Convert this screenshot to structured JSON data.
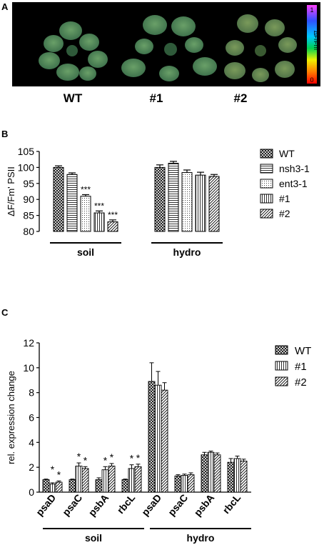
{
  "panel_a": {
    "letter": "A",
    "scale_label": "ΔF/Fm'",
    "scale_max": "1",
    "scale_min": "0",
    "genotypes": [
      "WT",
      "#1",
      "#2"
    ]
  },
  "chart_data": [
    {
      "panel": "B",
      "type": "bar",
      "ylabel": "ΔF/Fm' PSII",
      "ylim": [
        80,
        105
      ],
      "yticks": [
        "80",
        "85",
        "90",
        "95",
        "100",
        "105"
      ],
      "groups": [
        {
          "label": "soil",
          "values": [
            100.0,
            97.8,
            91.0,
            85.8,
            83.0
          ],
          "errors": [
            0.5,
            0.5,
            0.5,
            0.6,
            0.6
          ],
          "significance": [
            "",
            "",
            "***",
            "***",
            "***"
          ]
        },
        {
          "label": "hydro",
          "values": [
            100.0,
            101.3,
            98.4,
            97.6,
            97.2
          ],
          "errors": [
            0.8,
            0.6,
            0.8,
            0.9,
            0.6
          ],
          "significance": [
            "",
            "",
            "",
            "",
            ""
          ]
        }
      ],
      "series": [
        {
          "name": "WT",
          "pattern": "crosshatch"
        },
        {
          "name": "nsh3-1",
          "pattern": "horizontal"
        },
        {
          "name": "ent3-1",
          "pattern": "dots"
        },
        {
          "name": "#1",
          "pattern": "vertical"
        },
        {
          "name": "#2",
          "pattern": "diagonal"
        }
      ],
      "legend_position": "right",
      "significance_mark": "***"
    },
    {
      "panel": "C",
      "type": "bar",
      "ylabel": "rel. expression change",
      "ylim": [
        0,
        12
      ],
      "yticks": [
        "0",
        "2",
        "4",
        "6",
        "8",
        "10",
        "12"
      ],
      "categories": [
        "psaD",
        "psaC",
        "psbA",
        "rbcL",
        "psaD",
        "psaC",
        "psbA",
        "rbcL"
      ],
      "group_labels": [
        "soil",
        "hydro"
      ],
      "series": [
        {
          "name": "WT",
          "pattern": "crosshatch",
          "values": [
            1.0,
            1.0,
            1.0,
            1.0,
            8.9,
            1.3,
            3.0,
            2.4
          ],
          "errors": [
            0.05,
            0.05,
            0.15,
            0.05,
            1.5,
            0.1,
            0.2,
            0.3
          ]
        },
        {
          "name": "#1",
          "pattern": "vertical",
          "values": [
            0.65,
            2.1,
            1.8,
            1.9,
            8.6,
            1.35,
            3.2,
            2.7
          ],
          "errors": [
            0.1,
            0.25,
            0.25,
            0.3,
            1.1,
            0.1,
            0.1,
            0.2
          ]
        },
        {
          "name": "#2",
          "pattern": "diagonal",
          "values": [
            0.8,
            1.9,
            2.1,
            2.05,
            8.2,
            1.4,
            3.0,
            2.5
          ],
          "errors": [
            0.1,
            0.15,
            0.2,
            0.2,
            0.6,
            0.15,
            0.15,
            0.15
          ]
        }
      ],
      "significance": [
        [
          "*",
          "*"
        ],
        [
          "*",
          "*"
        ],
        [
          "*",
          "*"
        ],
        [
          "*",
          "*"
        ],
        [
          "",
          ""
        ],
        [
          "",
          ""
        ],
        [
          "",
          ""
        ],
        [
          "",
          ""
        ]
      ],
      "legend_position": "top-right"
    }
  ]
}
